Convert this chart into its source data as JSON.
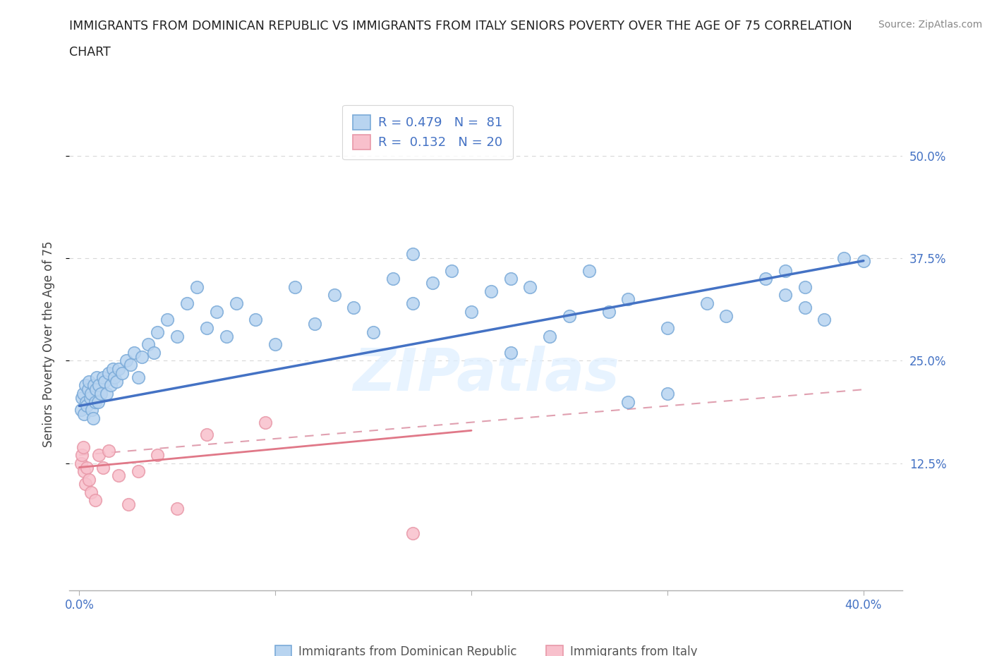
{
  "title_line1": "IMMIGRANTS FROM DOMINICAN REPUBLIC VS IMMIGRANTS FROM ITALY SENIORS POVERTY OVER THE AGE OF 75 CORRELATION",
  "title_line2": "CHART",
  "source": "Source: ZipAtlas.com",
  "ylabel": "Seniors Poverty Over the Age of 75",
  "watermark": "ZIPatlas",
  "legend_R1": "R = 0.479",
  "legend_N1": "N =  81",
  "legend_R2": "R =  0.132",
  "legend_N2": "N = 20",
  "color_blue_fill": "#b8d4f0",
  "color_blue_edge": "#7aaad8",
  "color_pink_fill": "#f8c0cc",
  "color_pink_edge": "#e898a8",
  "color_text_blue": "#4472c4",
  "color_line_blue": "#4472c4",
  "color_line_pink": "#e07888",
  "color_dashed_pink": "#e0a0b0",
  "color_grid": "#d8d8d8",
  "xlim_min": -0.5,
  "xlim_max": 42.0,
  "ylim_min": -3.0,
  "ylim_max": 57.0,
  "ytick_vals": [
    12.5,
    25.0,
    37.5,
    50.0
  ],
  "ytick_labels": [
    "12.5%",
    "25.0%",
    "37.5%",
    "50.0%"
  ],
  "xtick_vals": [
    0,
    10,
    20,
    30,
    40
  ],
  "blue_trend_x0": 0.0,
  "blue_trend_y0": 19.5,
  "blue_trend_x1": 40.0,
  "blue_trend_y1": 37.2,
  "pink_trend_x0": 0.0,
  "pink_trend_y0": 12.0,
  "pink_trend_x1": 20.0,
  "pink_trend_y1": 16.5,
  "pink_dash_x0": 0.0,
  "pink_dash_y0": 13.5,
  "pink_dash_x1": 40.0,
  "pink_dash_y1": 21.5,
  "blue_pts_x": [
    0.1,
    0.15,
    0.2,
    0.25,
    0.3,
    0.35,
    0.4,
    0.45,
    0.5,
    0.55,
    0.6,
    0.65,
    0.7,
    0.75,
    0.8,
    0.85,
    0.9,
    0.95,
    1.0,
    1.1,
    1.2,
    1.3,
    1.4,
    1.5,
    1.6,
    1.7,
    1.8,
    1.9,
    2.0,
    2.2,
    2.4,
    2.6,
    2.8,
    3.0,
    3.2,
    3.5,
    3.8,
    4.0,
    4.5,
    5.0,
    5.5,
    6.0,
    6.5,
    7.0,
    7.5,
    8.0,
    9.0,
    10.0,
    11.0,
    12.0,
    13.0,
    14.0,
    15.0,
    16.0,
    17.0,
    18.0,
    19.0,
    20.0,
    21.0,
    22.0,
    23.0,
    24.0,
    25.0,
    26.0,
    27.0,
    28.0,
    30.0,
    32.0,
    33.0,
    35.0,
    36.0,
    37.0,
    38.0,
    39.0,
    40.0,
    36.0,
    37.0,
    28.0,
    30.0,
    22.0,
    17.0
  ],
  "blue_pts_y": [
    19.0,
    20.5,
    21.0,
    18.5,
    22.0,
    20.0,
    19.5,
    21.5,
    22.5,
    20.5,
    21.0,
    19.0,
    18.0,
    22.0,
    20.0,
    21.5,
    23.0,
    20.0,
    22.0,
    21.0,
    23.0,
    22.5,
    21.0,
    23.5,
    22.0,
    24.0,
    23.0,
    22.5,
    24.0,
    23.5,
    25.0,
    24.5,
    26.0,
    23.0,
    25.5,
    27.0,
    26.0,
    28.5,
    30.0,
    28.0,
    32.0,
    34.0,
    29.0,
    31.0,
    28.0,
    32.0,
    30.0,
    27.0,
    34.0,
    29.5,
    33.0,
    31.5,
    28.5,
    35.0,
    32.0,
    34.5,
    36.0,
    31.0,
    33.5,
    35.0,
    34.0,
    28.0,
    30.5,
    36.0,
    31.0,
    32.5,
    29.0,
    32.0,
    30.5,
    35.0,
    36.0,
    31.5,
    30.0,
    37.5,
    37.2,
    33.0,
    34.0,
    20.0,
    21.0,
    26.0,
    38.0
  ],
  "pink_pts_x": [
    0.1,
    0.15,
    0.2,
    0.25,
    0.3,
    0.4,
    0.5,
    0.6,
    0.8,
    1.0,
    1.2,
    1.5,
    2.0,
    2.5,
    3.0,
    4.0,
    5.0,
    6.5,
    9.5,
    17.0
  ],
  "pink_pts_y": [
    12.5,
    13.5,
    14.5,
    11.5,
    10.0,
    12.0,
    10.5,
    9.0,
    8.0,
    13.5,
    12.0,
    14.0,
    11.0,
    7.5,
    11.5,
    13.5,
    7.0,
    16.0,
    17.5,
    4.0
  ]
}
